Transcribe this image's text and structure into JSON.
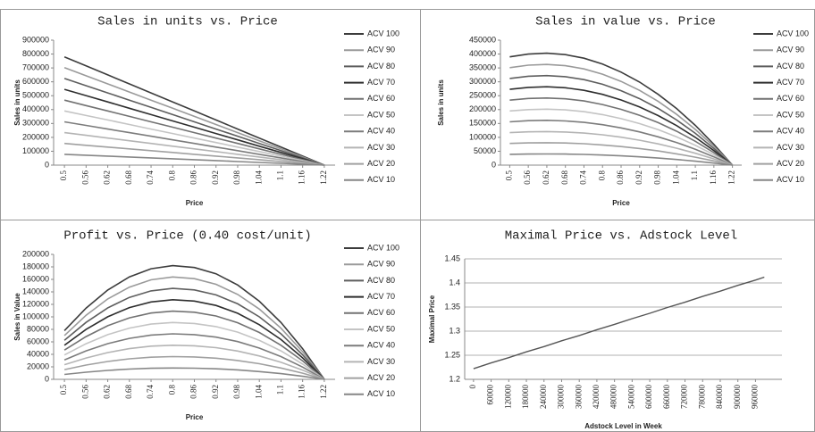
{
  "chart_data": [
    {
      "type": "line",
      "title": "Sales in units vs. Price",
      "x_label": "Price",
      "y_label": "Sales in units",
      "x": [
        0.5,
        0.56,
        0.62,
        0.68,
        0.74,
        0.8,
        0.86,
        0.92,
        0.98,
        1.04,
        1.1,
        1.16,
        1.22
      ],
      "xlim": [
        0.47,
        1.25
      ],
      "xticks": [
        0.5,
        0.56,
        0.62,
        0.68,
        0.74,
        0.8,
        0.86,
        0.92,
        0.98,
        1.04,
        1.1,
        1.16,
        1.22
      ],
      "ylim": [
        0,
        900000
      ],
      "yticks": [
        0,
        100000,
        200000,
        300000,
        400000,
        500000,
        600000,
        700000,
        800000,
        900000
      ],
      "grid": false,
      "legend": "right",
      "series": [
        {
          "name": "ACV 100",
          "color": "#3c3c3c",
          "values": [
            780000,
            715000,
            650000,
            585000,
            520000,
            455000,
            390000,
            325000,
            260000,
            195000,
            130000,
            65000,
            0
          ]
        },
        {
          "name": "ACV 90",
          "color": "#9a9a9a",
          "values": [
            702000,
            643500,
            585000,
            526500,
            468000,
            409500,
            351000,
            292500,
            234000,
            175500,
            117000,
            58500,
            0
          ]
        },
        {
          "name": "ACV 80",
          "color": "#5e5e5e",
          "values": [
            624000,
            572000,
            520000,
            468000,
            416000,
            364000,
            312000,
            260000,
            208000,
            156000,
            104000,
            52000,
            0
          ]
        },
        {
          "name": "ACV 70",
          "color": "#2e2e2e",
          "values": [
            546000,
            500500,
            455000,
            409500,
            364000,
            318500,
            273000,
            227500,
            182000,
            136500,
            91000,
            45500,
            0
          ]
        },
        {
          "name": "ACV 60",
          "color": "#727272",
          "values": [
            468000,
            429000,
            390000,
            351000,
            312000,
            273000,
            234000,
            195000,
            156000,
            117000,
            78000,
            39000,
            0
          ]
        },
        {
          "name": "ACV 50",
          "color": "#c4c4c4",
          "values": [
            390000,
            357500,
            325000,
            292500,
            260000,
            227500,
            195000,
            162500,
            130000,
            97500,
            65000,
            32500,
            0
          ]
        },
        {
          "name": "ACV 40",
          "color": "#7c7c7c",
          "values": [
            312000,
            286000,
            260000,
            234000,
            208000,
            182000,
            156000,
            130000,
            104000,
            78000,
            52000,
            26000,
            0
          ]
        },
        {
          "name": "ACV 30",
          "color": "#b4b4b4",
          "values": [
            234000,
            214500,
            195000,
            175500,
            156000,
            136500,
            117000,
            97500,
            78000,
            58500,
            39000,
            19500,
            0
          ]
        },
        {
          "name": "ACV 20",
          "color": "#a0a0a0",
          "values": [
            156000,
            143000,
            130000,
            117000,
            104000,
            91000,
            78000,
            65000,
            52000,
            39000,
            26000,
            13000,
            0
          ]
        },
        {
          "name": "ACV 10",
          "color": "#868686",
          "values": [
            78000,
            71500,
            65000,
            58500,
            52000,
            45500,
            39000,
            32500,
            26000,
            19500,
            13000,
            6500,
            0
          ]
        }
      ]
    },
    {
      "type": "line",
      "title": "Sales in value vs. Price",
      "x_label": "Price",
      "y_label": "Sales in units",
      "x": [
        0.5,
        0.56,
        0.62,
        0.68,
        0.74,
        0.8,
        0.86,
        0.92,
        0.98,
        1.04,
        1.1,
        1.16,
        1.22
      ],
      "xlim": [
        0.47,
        1.25
      ],
      "xticks": [
        0.5,
        0.56,
        0.62,
        0.68,
        0.74,
        0.8,
        0.86,
        0.92,
        0.98,
        1.04,
        1.1,
        1.16,
        1.22
      ],
      "ylim": [
        0,
        450000
      ],
      "yticks": [
        0,
        50000,
        100000,
        150000,
        200000,
        250000,
        300000,
        350000,
        400000,
        450000
      ],
      "grid": false,
      "legend": "right",
      "series": [
        {
          "name": "ACV 100",
          "color": "#3c3c3c",
          "values": [
            390000,
            400000,
            403000,
            398000,
            385000,
            364000,
            335000,
            299000,
            255000,
            203000,
            143000,
            75000,
            0
          ]
        },
        {
          "name": "ACV 90",
          "color": "#9a9a9a",
          "values": [
            351000,
            360000,
            362700,
            358200,
            346500,
            327600,
            301500,
            269100,
            229500,
            182700,
            128700,
            67500,
            0
          ]
        },
        {
          "name": "ACV 80",
          "color": "#5e5e5e",
          "values": [
            312000,
            320000,
            322400,
            318400,
            308000,
            291200,
            268000,
            239200,
            204000,
            162400,
            114400,
            60000,
            0
          ]
        },
        {
          "name": "ACV 70",
          "color": "#2e2e2e",
          "values": [
            273000,
            280000,
            282100,
            278600,
            269500,
            254800,
            234500,
            209300,
            178500,
            142100,
            100100,
            52500,
            0
          ]
        },
        {
          "name": "ACV 60",
          "color": "#727272",
          "values": [
            234000,
            240000,
            241800,
            238800,
            231000,
            218400,
            201000,
            179400,
            153000,
            121800,
            85800,
            45000,
            0
          ]
        },
        {
          "name": "ACV 50",
          "color": "#c4c4c4",
          "values": [
            195000,
            200000,
            201500,
            199000,
            192500,
            182000,
            167500,
            149500,
            127500,
            101500,
            71500,
            37500,
            0
          ]
        },
        {
          "name": "ACV 40",
          "color": "#7c7c7c",
          "values": [
            156000,
            160000,
            161200,
            159200,
            154000,
            145600,
            134000,
            119600,
            102000,
            81200,
            57200,
            30000,
            0
          ]
        },
        {
          "name": "ACV 30",
          "color": "#b4b4b4",
          "values": [
            117000,
            120000,
            120900,
            119400,
            115500,
            109200,
            100500,
            89700,
            76500,
            60900,
            42900,
            22500,
            0
          ]
        },
        {
          "name": "ACV 20",
          "color": "#a0a0a0",
          "values": [
            78000,
            80000,
            80600,
            79600,
            77000,
            72800,
            67000,
            59800,
            51000,
            40600,
            28600,
            15000,
            0
          ]
        },
        {
          "name": "ACV 10",
          "color": "#868686",
          "values": [
            39000,
            40000,
            40300,
            39800,
            38500,
            36400,
            33500,
            29900,
            25500,
            20300,
            14300,
            7500,
            0
          ]
        }
      ]
    },
    {
      "type": "line",
      "title": "Profit vs. Price (0.40 cost/unit)",
      "x_label": "Price",
      "y_label": "Sales in Value",
      "x": [
        0.5,
        0.56,
        0.62,
        0.68,
        0.74,
        0.8,
        0.86,
        0.92,
        0.98,
        1.04,
        1.1,
        1.16,
        1.22
      ],
      "xlim": [
        0.47,
        1.25
      ],
      "xticks": [
        0.5,
        0.56,
        0.62,
        0.68,
        0.74,
        0.8,
        0.86,
        0.92,
        0.98,
        1.04,
        1.1,
        1.16,
        1.22
      ],
      "ylim": [
        0,
        200000
      ],
      "yticks": [
        0,
        20000,
        40000,
        60000,
        80000,
        100000,
        120000,
        140000,
        160000,
        180000,
        200000
      ],
      "grid": false,
      "legend": "right",
      "series": [
        {
          "name": "ACV 100",
          "color": "#3c3c3c",
          "values": [
            78000,
            114000,
            143000,
            164000,
            177000,
            182000,
            179000,
            169000,
            151000,
            125000,
            91000,
            49000,
            0
          ]
        },
        {
          "name": "ACV 90",
          "color": "#9a9a9a",
          "values": [
            70200,
            102600,
            128700,
            147600,
            159300,
            163800,
            161100,
            152100,
            135900,
            112500,
            81900,
            44100,
            0
          ]
        },
        {
          "name": "ACV 80",
          "color": "#5e5e5e",
          "values": [
            62400,
            91200,
            114400,
            131200,
            141600,
            145600,
            143200,
            135200,
            120800,
            100000,
            72800,
            39200,
            0
          ]
        },
        {
          "name": "ACV 70",
          "color": "#2e2e2e",
          "values": [
            54600,
            79800,
            100100,
            114800,
            123900,
            127400,
            125300,
            118300,
            105700,
            87500,
            63700,
            34300,
            0
          ]
        },
        {
          "name": "ACV 60",
          "color": "#727272",
          "values": [
            46800,
            68400,
            85800,
            98400,
            106200,
            109200,
            107400,
            101400,
            90600,
            75000,
            54600,
            29400,
            0
          ]
        },
        {
          "name": "ACV 50",
          "color": "#c4c4c4",
          "values": [
            39000,
            57000,
            71500,
            82000,
            88500,
            91000,
            89500,
            84500,
            75500,
            62500,
            45500,
            24500,
            0
          ]
        },
        {
          "name": "ACV 40",
          "color": "#7c7c7c",
          "values": [
            31200,
            45600,
            57200,
            65600,
            70800,
            72800,
            71600,
            67600,
            60400,
            50000,
            36400,
            19600,
            0
          ]
        },
        {
          "name": "ACV 30",
          "color": "#b4b4b4",
          "values": [
            23400,
            34200,
            42900,
            49200,
            53100,
            54600,
            53700,
            50700,
            45300,
            37500,
            27300,
            14700,
            0
          ]
        },
        {
          "name": "ACV 20",
          "color": "#a0a0a0",
          "values": [
            15600,
            22800,
            28600,
            32800,
            35400,
            36400,
            35800,
            33800,
            30200,
            25000,
            18200,
            9800,
            0
          ]
        },
        {
          "name": "ACV 10",
          "color": "#868686",
          "values": [
            7800,
            11400,
            14300,
            16400,
            17700,
            18200,
            17900,
            16900,
            15100,
            12500,
            9100,
            4900,
            0
          ]
        }
      ]
    },
    {
      "type": "line",
      "title": "Maximal Price vs. Adstock Level",
      "x_label": "Adstock Level in Week",
      "y_label": "Maximal Price",
      "x": [
        0,
        60000,
        120000,
        180000,
        240000,
        300000,
        360000,
        420000,
        480000,
        540000,
        600000,
        660000,
        720000,
        780000,
        840000,
        900000,
        960000,
        990000
      ],
      "values": [
        1.222,
        1.234,
        1.245,
        1.257,
        1.268,
        1.28,
        1.291,
        1.303,
        1.314,
        1.326,
        1.337,
        1.349,
        1.36,
        1.372,
        1.383,
        1.395,
        1.406,
        1.412
      ],
      "color": "#555555",
      "xlim": [
        -30000,
        1050000
      ],
      "xticks": [
        0,
        60000,
        120000,
        180000,
        240000,
        300000,
        360000,
        420000,
        480000,
        540000,
        600000,
        660000,
        720000,
        780000,
        840000,
        900000,
        960000
      ],
      "ylim": [
        1.2,
        1.45
      ],
      "yticks": [
        1.2,
        1.25,
        1.3,
        1.35,
        1.4,
        1.45
      ],
      "grid": true
    }
  ]
}
